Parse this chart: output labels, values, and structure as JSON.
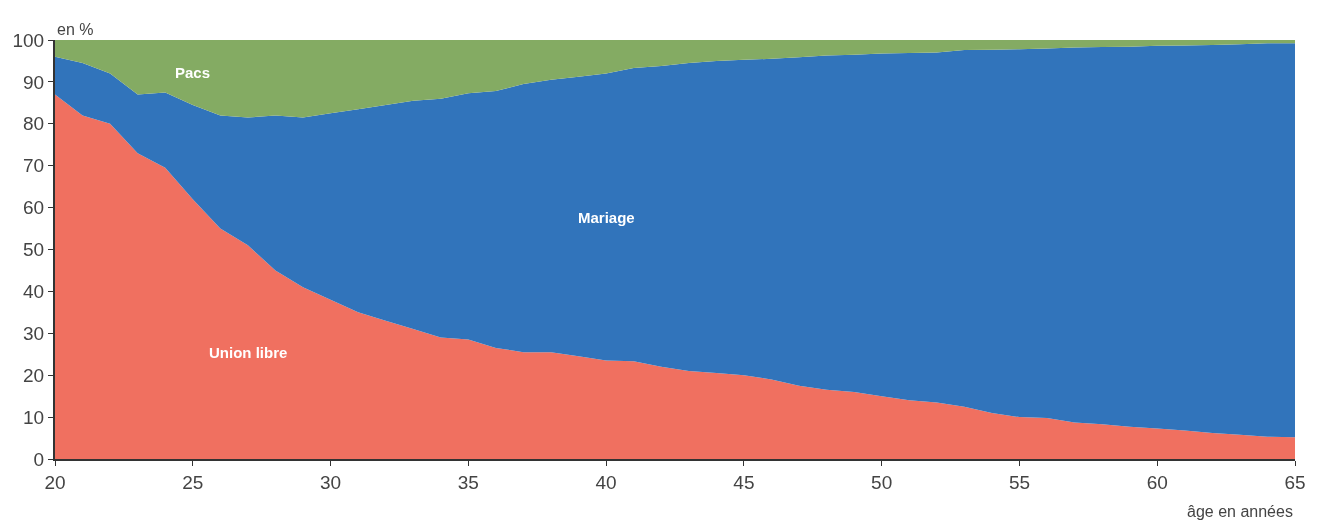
{
  "chart_data": {
    "type": "area",
    "stacked": true,
    "xlabel": "âge en années",
    "ylabel": "en %",
    "x": [
      20,
      21,
      22,
      23,
      24,
      25,
      26,
      27,
      28,
      29,
      30,
      31,
      32,
      33,
      34,
      35,
      36,
      37,
      38,
      39,
      40,
      41,
      42,
      43,
      44,
      45,
      46,
      47,
      48,
      49,
      50,
      51,
      52,
      53,
      54,
      55,
      56,
      57,
      58,
      59,
      60,
      61,
      62,
      63,
      64,
      65
    ],
    "series": [
      {
        "name": "Union libre",
        "color": "#f07060",
        "values": [
          87,
          82,
          80,
          73,
          69.5,
          62,
          55,
          51,
          45,
          41,
          38,
          35,
          33,
          31,
          29,
          28.5,
          26.5,
          25.5,
          25.5,
          24.5,
          23.5,
          23.3,
          22,
          21,
          20.5,
          20,
          19,
          17.5,
          16.5,
          16,
          15,
          14,
          13.5,
          12.5,
          11,
          10,
          9.8,
          8.7,
          8.3,
          7.7,
          7.3,
          6.8,
          6.2,
          5.8,
          5.3,
          5.2
        ]
      },
      {
        "name": "Mariage",
        "color": "#3174bb",
        "values": [
          9,
          12.5,
          12,
          14,
          18,
          22.5,
          27,
          30.5,
          37,
          40.5,
          44.5,
          48.5,
          51.5,
          54.5,
          57,
          58.8,
          61.3,
          64,
          65,
          66.7,
          68.5,
          70,
          71.8,
          73.5,
          74.5,
          75.3,
          76.5,
          78.4,
          79.8,
          80.5,
          81.8,
          82.9,
          83.5,
          85.1,
          86.7,
          87.8,
          88.2,
          89.5,
          90,
          90.7,
          91.3,
          91.9,
          92.6,
          93.2,
          93.9,
          94
        ]
      },
      {
        "name": "Pacs",
        "color": "#84ab63",
        "values": [
          4,
          5.5,
          8,
          13,
          12.5,
          15.5,
          18,
          18.5,
          18,
          18.5,
          17.5,
          16.5,
          15.5,
          14.5,
          14,
          12.7,
          12.2,
          10.5,
          9.5,
          8.8,
          8,
          6.7,
          6.2,
          5.5,
          5,
          4.7,
          4.5,
          4.1,
          3.7,
          3.5,
          3.2,
          3.1,
          3,
          2.4,
          2.3,
          2.2,
          2,
          1.8,
          1.7,
          1.6,
          1.4,
          1.3,
          1.2,
          1,
          0.8,
          0.8
        ]
      }
    ],
    "xlim": [
      20,
      65
    ],
    "xticks": [
      20,
      25,
      30,
      35,
      40,
      45,
      50,
      55,
      60,
      65
    ],
    "ylim": [
      0,
      100
    ],
    "yticks": [
      0,
      10,
      20,
      30,
      40,
      50,
      60,
      70,
      80,
      90,
      100
    ],
    "legend": false
  }
}
